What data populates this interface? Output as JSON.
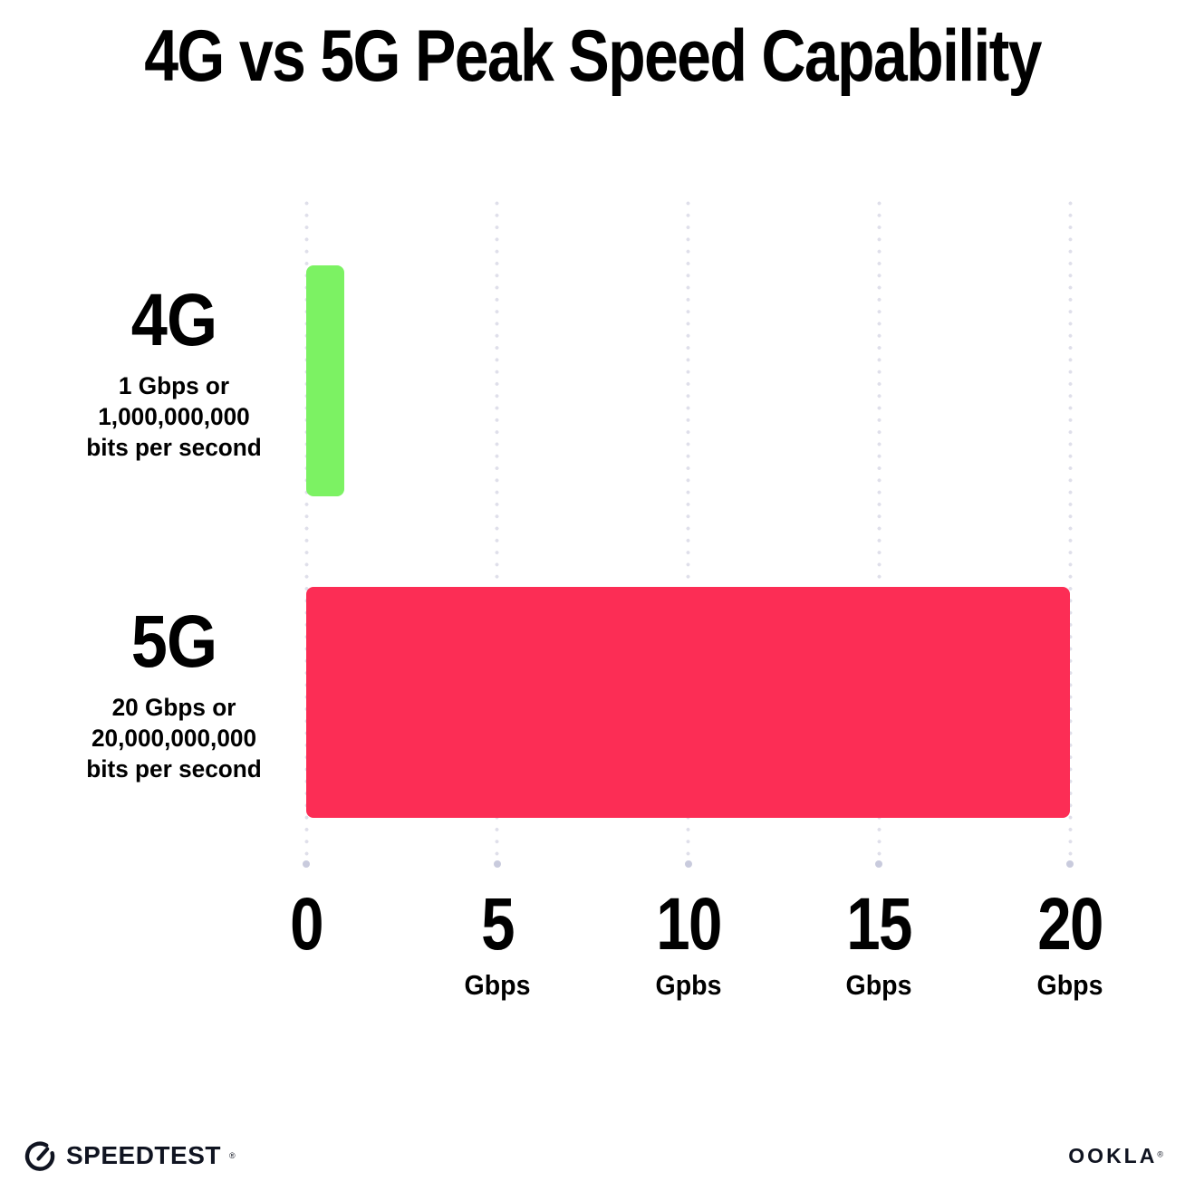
{
  "title": "4G vs 5G Peak Speed Capability",
  "chart_data": {
    "type": "bar",
    "orientation": "horizontal",
    "title": "4G vs 5G Peak Speed Capability",
    "xlim": [
      0,
      20
    ],
    "grid": "dotted-vertical",
    "categories": [
      "4G",
      "5G"
    ],
    "values": [
      1,
      20
    ],
    "rows": [
      {
        "label": "4G",
        "sublabel_lines": [
          "1 Gbps or",
          "1,000,000,000",
          "bits per second"
        ],
        "value": 1,
        "color": "#7cf263"
      },
      {
        "label": "5G",
        "sublabel_lines": [
          "20 Gbps or",
          "20,000,000,000",
          "bits per second"
        ],
        "value": 20,
        "color": "#fc2d55"
      }
    ],
    "x_ticks": [
      {
        "value": 0,
        "label": "0",
        "unit": ""
      },
      {
        "value": 5,
        "label": "5",
        "unit": "Gbps"
      },
      {
        "value": 10,
        "label": "10",
        "unit": "Gpbs"
      },
      {
        "value": 15,
        "label": "15",
        "unit": "Gbps"
      },
      {
        "value": 20,
        "label": "20",
        "unit": "Gbps"
      }
    ]
  },
  "colors": {
    "bar_4g": "#7cf263",
    "bar_5g": "#fc2d55",
    "grid_dot": "#dfdfea",
    "grid_dot_end": "#c9cbdd",
    "text": "#000000"
  },
  "footer": {
    "speedtest_label": "SPEEDTEST",
    "speedtest_trademark": "®",
    "speedtest_icon": "gauge-icon",
    "ookla_label": "OOKLA",
    "ookla_trademark": "®"
  }
}
